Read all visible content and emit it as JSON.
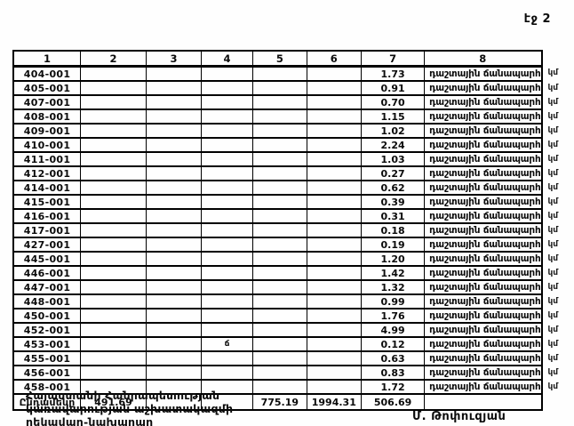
{
  "page": {
    "page_label": "էջ 2"
  },
  "table": {
    "headers": [
      "1",
      "2",
      "3",
      "4",
      "5",
      "6",
      "7",
      "8"
    ],
    "description": "դաշտային ճանապարհ",
    "unit": "կմ",
    "rows": [
      {
        "code": "404-001",
        "value": "1.73"
      },
      {
        "code": "405-001",
        "value": "0.91"
      },
      {
        "code": "407-001",
        "value": "0.70"
      },
      {
        "code": "408-001",
        "value": "1.15"
      },
      {
        "code": "409-001",
        "value": "1.02"
      },
      {
        "code": "410-001",
        "value": "2.24"
      },
      {
        "code": "411-001",
        "value": "1.03"
      },
      {
        "code": "412-001",
        "value": "0.27"
      },
      {
        "code": "414-001",
        "value": "0.62"
      },
      {
        "code": "415-001",
        "value": "0.39"
      },
      {
        "code": "416-001",
        "value": "0.31"
      },
      {
        "code": "417-001",
        "value": "0.18"
      },
      {
        "code": "427-001",
        "value": "0.19"
      },
      {
        "code": "445-001",
        "value": "1.20"
      },
      {
        "code": "446-001",
        "value": "1.42"
      },
      {
        "code": "447-001",
        "value": "1.32"
      },
      {
        "code": "448-001",
        "value": "0.99"
      },
      {
        "code": "450-001",
        "value": "1.76"
      },
      {
        "code": "452-001",
        "value": "4.99"
      },
      {
        "code": "453-001",
        "value": "0.12",
        "mark": "ճ"
      },
      {
        "code": "455-001",
        "value": "0.63"
      },
      {
        "code": "456-001",
        "value": "0.83"
      },
      {
        "code": "458-001",
        "value": "1.72"
      }
    ],
    "total": {
      "label": "Ընդամենը",
      "col_values": [
        "491.69",
        "",
        "",
        "775.19",
        "1994.31",
        "506.69",
        ""
      ]
    }
  },
  "footer": {
    "org_lines": [
      "Հայաստանի Հանրապետության",
      "կառավարության աշխատակազմի",
      "ղեկավար-նախարար"
    ],
    "signature": "Մ. Թոփուզյան"
  }
}
